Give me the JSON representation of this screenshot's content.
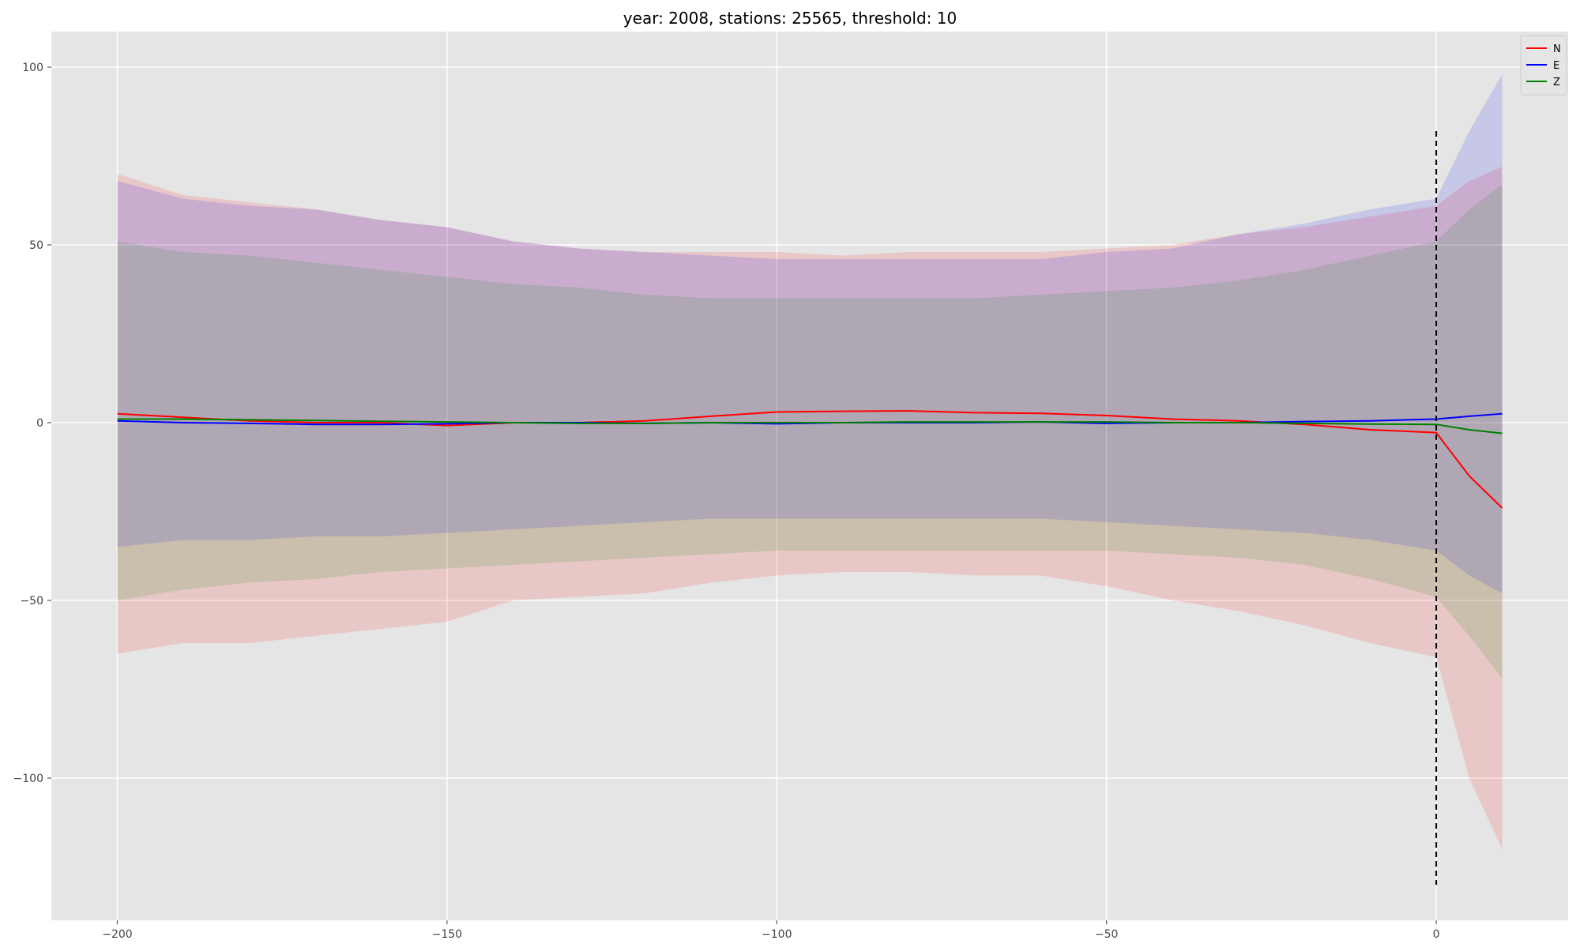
{
  "chart_data": {
    "type": "line",
    "title": "year: 2008, stations: 25565, threshold: 10",
    "xlabel": "",
    "ylabel": "",
    "xlim": [
      -210,
      20
    ],
    "ylim": [
      -140,
      110
    ],
    "xticks": [
      -200,
      -150,
      -100,
      -50,
      0
    ],
    "yticks": [
      -100,
      -50,
      0,
      50,
      100
    ],
    "x_tick_labels": [
      "−200",
      "−150",
      "−100",
      "−50",
      "0"
    ],
    "y_tick_labels": [
      "−100",
      "−50",
      "0",
      "50",
      "100"
    ],
    "grid": true,
    "legend_position": "top-right",
    "x": [
      -200,
      -190,
      -180,
      -170,
      -160,
      -150,
      -140,
      -130,
      -120,
      -110,
      -100,
      -90,
      -80,
      -70,
      -60,
      -50,
      -40,
      -30,
      -20,
      -10,
      0,
      5,
      10
    ],
    "vline": {
      "x": 0,
      "ymin": -130,
      "ymax": 82,
      "color": "#000000",
      "style": "dashed"
    },
    "series": [
      {
        "name": "N",
        "color": "#ff0000",
        "values": [
          2.5,
          1.5,
          0.5,
          0,
          0,
          -0.8,
          0,
          0,
          0.5,
          1.8,
          3,
          3.2,
          3.3,
          2.8,
          2.6,
          2,
          1,
          0.5,
          -0.5,
          -2,
          -2.8,
          -15,
          -24
        ],
        "upper": [
          70,
          64,
          62,
          60,
          57,
          55,
          51,
          49,
          48,
          48,
          48,
          47,
          48,
          48,
          48,
          49,
          50,
          53,
          55,
          58,
          61,
          68,
          72
        ],
        "lower": [
          -65,
          -62,
          -62,
          -60,
          -58,
          -56,
          -50,
          -49,
          -48,
          -45,
          -43,
          -42,
          -42,
          -43,
          -43,
          -46,
          -50,
          -53,
          -57,
          -62,
          -66,
          -100,
          -120
        ]
      },
      {
        "name": "E",
        "color": "#0000ff",
        "values": [
          0.5,
          0,
          -0.2,
          -0.5,
          -0.5,
          -0.3,
          0,
          0,
          -0.2,
          0,
          -0.3,
          0,
          0,
          0,
          0.2,
          -0.2,
          0,
          0,
          0.3,
          0.5,
          1,
          1.8,
          2.5
        ],
        "upper": [
          68,
          63,
          61,
          60,
          57,
          55,
          51,
          49,
          48,
          47,
          46,
          46,
          46,
          46,
          46,
          48,
          49,
          53,
          56,
          60,
          63,
          82,
          98
        ],
        "lower": [
          -35,
          -33,
          -33,
          -32,
          -32,
          -31,
          -30,
          -29,
          -28,
          -27,
          -27,
          -27,
          -27,
          -27,
          -27,
          -28,
          -29,
          -30,
          -31,
          -33,
          -36,
          -43,
          -48
        ]
      },
      {
        "name": "Z",
        "color": "#008000",
        "values": [
          1,
          1,
          0.8,
          0.6,
          0.4,
          0.2,
          0,
          -0.2,
          -0.2,
          0,
          0,
          0,
          0.2,
          0.2,
          0.2,
          0.2,
          0,
          0,
          -0.2,
          -0.4,
          -0.5,
          -2,
          -3
        ],
        "upper": [
          51,
          48,
          47,
          45,
          43,
          41,
          39,
          38,
          36,
          35,
          35,
          35,
          35,
          35,
          36,
          37,
          38,
          40,
          43,
          47,
          51,
          60,
          67
        ],
        "lower": [
          -50,
          -47,
          -45,
          -44,
          -42,
          -41,
          -40,
          -39,
          -38,
          -37,
          -36,
          -36,
          -36,
          -36,
          -36,
          -36,
          -37,
          -38,
          -40,
          -44,
          -49,
          -60,
          -72
        ]
      }
    ]
  }
}
